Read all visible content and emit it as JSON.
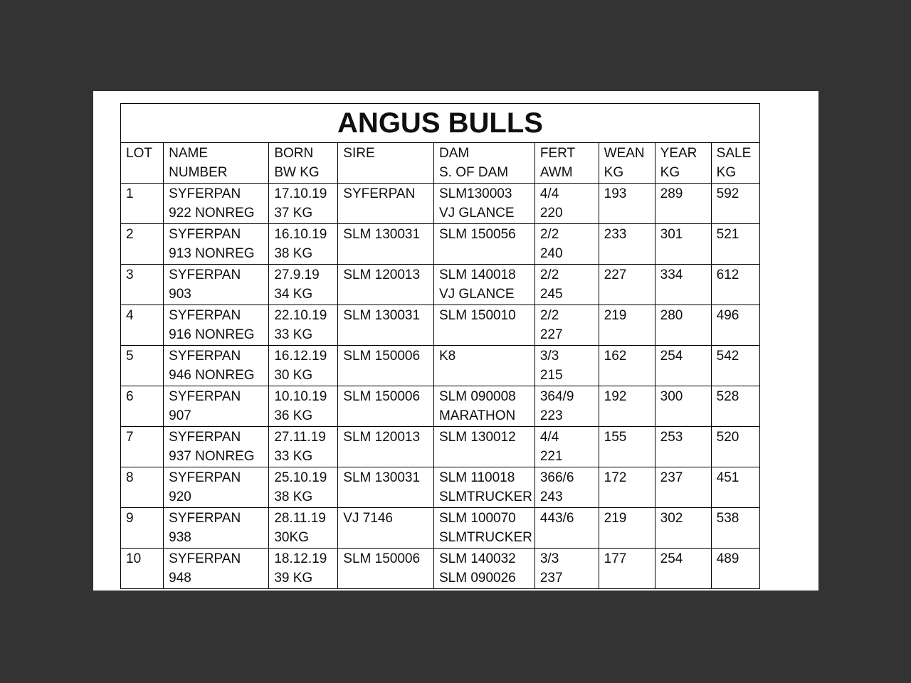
{
  "doc": {
    "title": "ANGUS BULLS"
  },
  "table": {
    "columns": [
      {
        "id": "lot",
        "line1": "LOT",
        "line2": ""
      },
      {
        "id": "name-number",
        "line1": "NAME",
        "line2": "NUMBER"
      },
      {
        "id": "born-bw-kg",
        "line1": "BORN",
        "line2": "BW KG"
      },
      {
        "id": "sire",
        "line1": "SIRE",
        "line2": ""
      },
      {
        "id": "dam-s-of-dam",
        "line1": "DAM",
        "line2": "S. OF DAM"
      },
      {
        "id": "fert-awm",
        "line1": "FERT",
        "line2": "AWM"
      },
      {
        "id": "wean-kg",
        "line1": "WEAN",
        "line2": "KG"
      },
      {
        "id": "year-kg",
        "line1": "YEAR",
        "line2": "KG"
      },
      {
        "id": "sale-kg",
        "line1": "SALE",
        "line2": "KG"
      }
    ],
    "rows": [
      {
        "cells": [
          [
            "1"
          ],
          [
            "SYFERPAN",
            "922 NONREG"
          ],
          [
            "17.10.19",
            "37 KG"
          ],
          [
            "SYFERPAN"
          ],
          [
            "SLM130003",
            "VJ GLANCE"
          ],
          [
            "4/4",
            "220"
          ],
          [
            "193"
          ],
          [
            "289"
          ],
          [
            "592"
          ]
        ]
      },
      {
        "cells": [
          [
            "2"
          ],
          [
            "SYFERPAN",
            "913 NONREG"
          ],
          [
            "16.10.19",
            "38 KG"
          ],
          [
            "SLM 130031"
          ],
          [
            "SLM 150056"
          ],
          [
            "2/2",
            "240"
          ],
          [
            "233"
          ],
          [
            "301"
          ],
          [
            "521"
          ]
        ]
      },
      {
        "cells": [
          [
            "3"
          ],
          [
            "SYFERPAN",
            "903"
          ],
          [
            "27.9.19",
            "34 KG"
          ],
          [
            "SLM 120013"
          ],
          [
            "SLM 140018",
            "VJ GLANCE"
          ],
          [
            "2/2",
            "245"
          ],
          [
            "227"
          ],
          [
            "334"
          ],
          [
            "612"
          ]
        ]
      },
      {
        "cells": [
          [
            "4"
          ],
          [
            "SYFERPAN",
            "916 NONREG"
          ],
          [
            "22.10.19",
            "33 KG"
          ],
          [
            "SLM 130031"
          ],
          [
            "SLM 150010"
          ],
          [
            "2/2",
            "227"
          ],
          [
            "219"
          ],
          [
            "280"
          ],
          [
            "496"
          ]
        ]
      },
      {
        "cells": [
          [
            "5"
          ],
          [
            "SYFERPAN",
            "946 NONREG"
          ],
          [
            "16.12.19",
            "30 KG"
          ],
          [
            "SLM 150006"
          ],
          [
            "K8"
          ],
          [
            "3/3",
            "215"
          ],
          [
            "162"
          ],
          [
            "254"
          ],
          [
            "542"
          ]
        ]
      },
      {
        "cells": [
          [
            "6"
          ],
          [
            "SYFERPAN",
            "907"
          ],
          [
            "10.10.19",
            "36 KG"
          ],
          [
            "SLM 150006"
          ],
          [
            "SLM 090008",
            "MARATHON"
          ],
          [
            "364/9",
            "223"
          ],
          [
            "192"
          ],
          [
            "300"
          ],
          [
            "528"
          ]
        ]
      },
      {
        "cells": [
          [
            "7"
          ],
          [
            "SYFERPAN",
            "937 NONREG"
          ],
          [
            "27.11.19",
            "33 KG"
          ],
          [
            "SLM 120013"
          ],
          [
            "SLM 130012"
          ],
          [
            "4/4",
            "221"
          ],
          [
            "155"
          ],
          [
            "253"
          ],
          [
            "520"
          ]
        ]
      },
      {
        "cells": [
          [
            "8"
          ],
          [
            "SYFERPAN",
            "920"
          ],
          [
            "25.10.19",
            "38 KG"
          ],
          [
            "SLM 130031"
          ],
          [
            "SLM 110018",
            "SLMTRUCKER"
          ],
          [
            "366/6",
            "243"
          ],
          [
            "172"
          ],
          [
            "237"
          ],
          [
            "451"
          ]
        ]
      },
      {
        "cells": [
          [
            "9"
          ],
          [
            "SYFERPAN",
            "938"
          ],
          [
            "28.11.19",
            "30KG"
          ],
          [
            "VJ 7146"
          ],
          [
            "SLM 100070",
            "SLMTRUCKER"
          ],
          [
            "443/6"
          ],
          [
            "219"
          ],
          [
            "302"
          ],
          [
            "538"
          ]
        ]
      },
      {
        "cells": [
          [
            "10"
          ],
          [
            "SYFERPAN",
            "948"
          ],
          [
            "18.12.19",
            "39 KG"
          ],
          [
            "SLM 150006"
          ],
          [
            "SLM 140032",
            "SLM 090026"
          ],
          [
            "3/3",
            "237"
          ],
          [
            "177"
          ],
          [
            "254"
          ],
          [
            "489"
          ]
        ]
      }
    ]
  },
  "colors": {
    "background": "#333333",
    "page": "#ffffff",
    "text": "#0f0f0f",
    "border": "#000000"
  }
}
